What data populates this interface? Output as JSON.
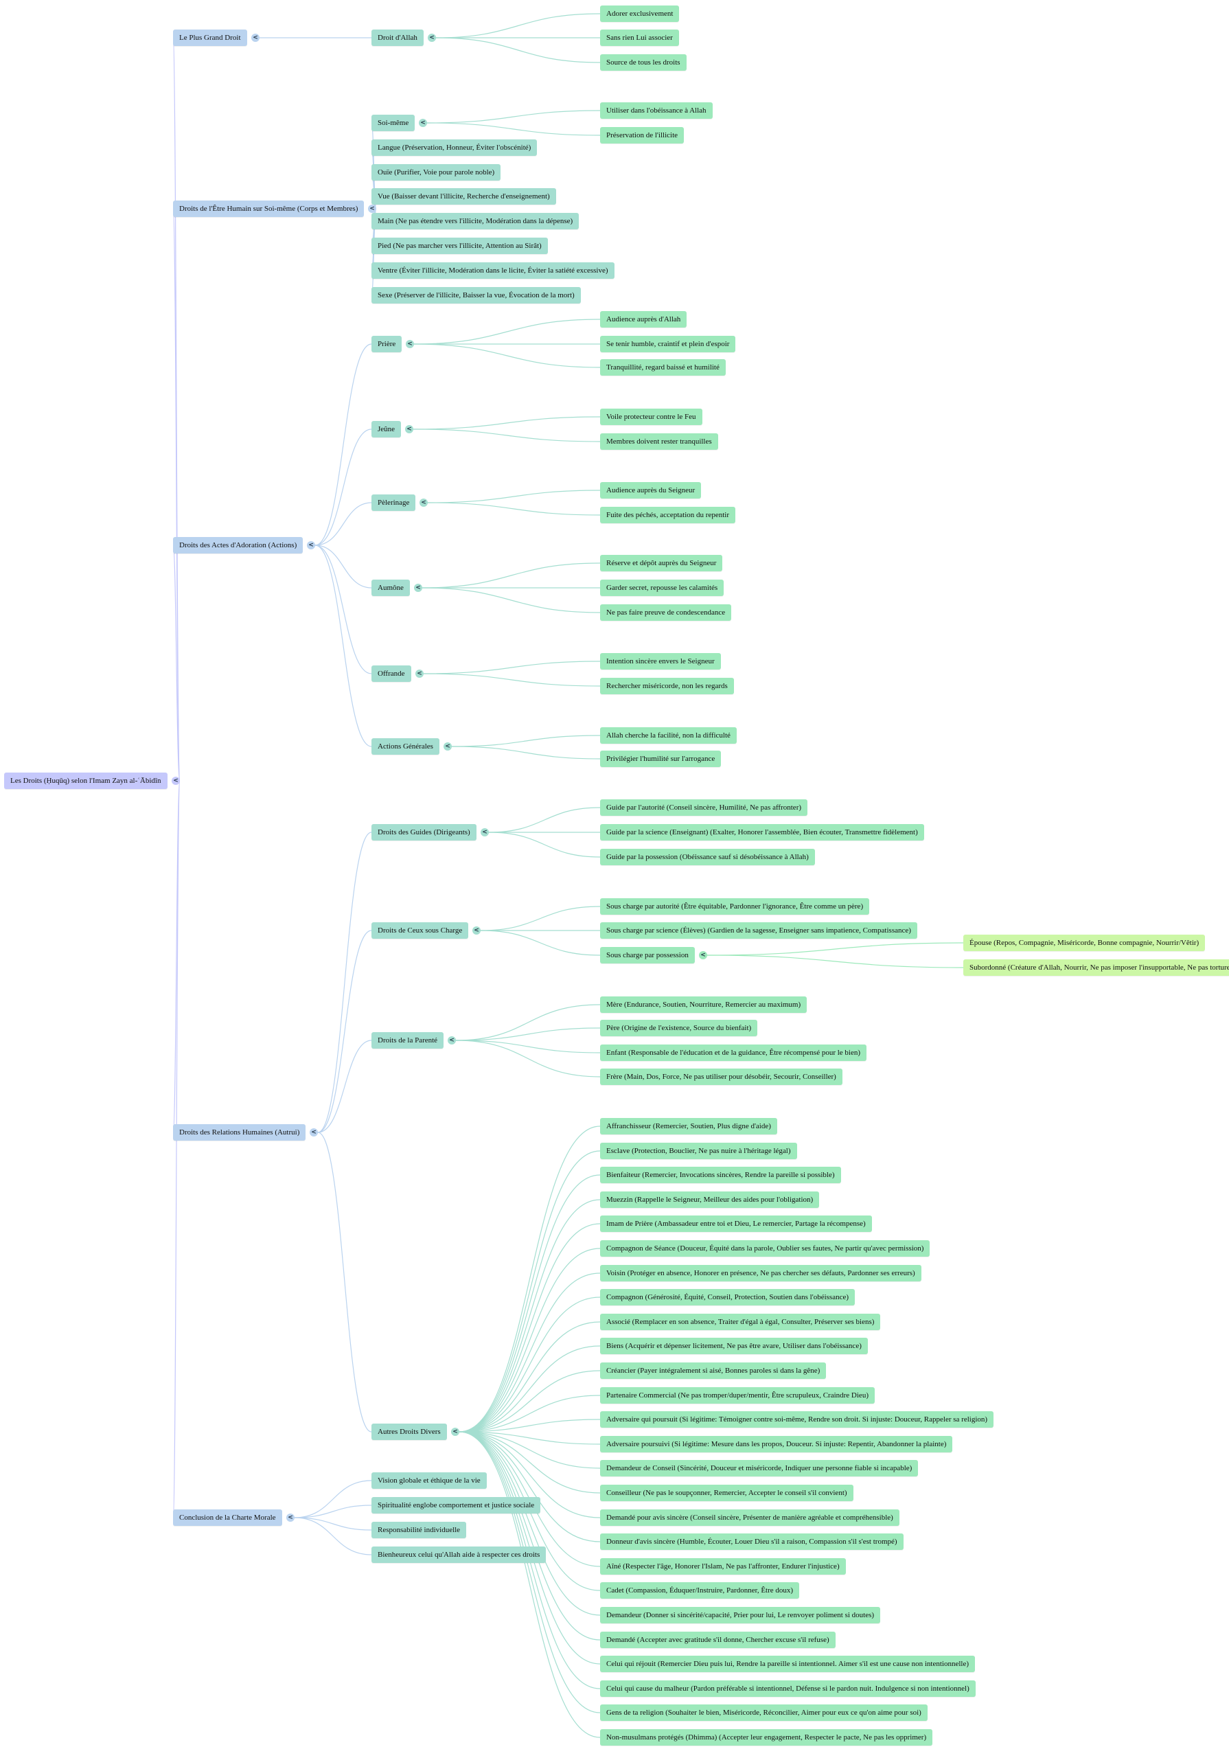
{
  "colors": {
    "level0": "#c5c8fb",
    "level1": "#bad3ef",
    "level2": "#a4ded0",
    "level3": "#9de9bb",
    "level4": "#ccf7a6"
  },
  "toggle_icon": "chevron-left-icon",
  "tree": {
    "label": "Les Droits (Ḥuqūq) selon l'Imam Zayn al-ʿĀbidīn",
    "children": [
      {
        "label": "Le Plus Grand Droit",
        "children": [
          {
            "label": "Droit d'Allah",
            "children": [
              {
                "label": "Adorer exclusivement"
              },
              {
                "label": "Sans rien Lui associer"
              },
              {
                "label": "Source de tous les droits"
              }
            ]
          }
        ]
      },
      {
        "label": "Droits de l'Être Humain sur Soi-même (Corps et Membres)",
        "children": [
          {
            "label": "Soi-même",
            "children": [
              {
                "label": "Utiliser dans l'obéissance à Allah"
              },
              {
                "label": "Préservation de l'illicite"
              }
            ]
          },
          {
            "label": "Langue (Préservation, Honneur, Éviter l'obscénité)"
          },
          {
            "label": "Ouïe (Purifier, Voie pour parole noble)"
          },
          {
            "label": "Vue (Baisser devant l'illicite, Recherche d'enseignement)"
          },
          {
            "label": "Main (Ne pas étendre vers l'illicite, Modération dans la dépense)"
          },
          {
            "label": "Pied (Ne pas marcher vers l'illicite, Attention au Sirât)"
          },
          {
            "label": "Ventre (Éviter l'illicite, Modération dans le licite, Éviter la satiété excessive)"
          },
          {
            "label": "Sexe (Préserver de l'illicite, Baisser la vue, Évocation de la mort)"
          }
        ]
      },
      {
        "label": "Droits des Actes d'Adoration (Actions)",
        "children": [
          {
            "label": "Prière",
            "children": [
              {
                "label": "Audience auprès d'Allah"
              },
              {
                "label": "Se tenir humble, craintif et plein d'espoir"
              },
              {
                "label": "Tranquillité, regard baissé et humilité"
              }
            ]
          },
          {
            "label": "Jeûne",
            "children": [
              {
                "label": "Voile protecteur contre le Feu"
              },
              {
                "label": "Membres doivent rester tranquilles"
              }
            ]
          },
          {
            "label": "Pèlerinage",
            "children": [
              {
                "label": "Audience auprès du Seigneur"
              },
              {
                "label": "Fuite des péchés, acceptation du repentir"
              }
            ]
          },
          {
            "label": "Aumône",
            "children": [
              {
                "label": "Réserve et dépôt auprès du Seigneur"
              },
              {
                "label": "Garder secret, repousse les calamités"
              },
              {
                "label": "Ne pas faire preuve de condescendance"
              }
            ]
          },
          {
            "label": "Offrande",
            "children": [
              {
                "label": "Intention sincère envers le Seigneur"
              },
              {
                "label": "Rechercher miséricorde, non les regards"
              }
            ]
          },
          {
            "label": "Actions Générales",
            "children": [
              {
                "label": "Allah cherche la facilité, non la difficulté"
              },
              {
                "label": "Privilégier l'humilité sur l'arrogance"
              }
            ]
          }
        ]
      },
      {
        "label": "Droits des Relations Humaines (Autrui)",
        "children": [
          {
            "label": "Droits des Guides (Dirigeants)",
            "children": [
              {
                "label": "Guide par l'autorité (Conseil sincère, Humilité, Ne pas affronter)"
              },
              {
                "label": "Guide par la science (Enseignant) (Exalter, Honorer l'assemblée, Bien écouter, Transmettre fidèlement)"
              },
              {
                "label": "Guide par la possession (Obéissance sauf si désobéissance à Allah)"
              }
            ]
          },
          {
            "label": "Droits de Ceux sous Charge",
            "children": [
              {
                "label": "Sous charge par autorité (Être équitable, Pardonner l'ignorance, Être comme un père)"
              },
              {
                "label": "Sous charge par science (Élèves) (Gardien de la sagesse, Enseigner sans impatience, Compatissance)"
              },
              {
                "label": "Sous charge par possession",
                "children": [
                  {
                    "label": "Épouse (Repos, Compagnie, Miséricorde, Bonne compagnie, Nourrir/Vêtir)"
                  },
                  {
                    "label": "Subordonné (Créature d'Allah, Nourrir, Ne pas imposer l'insupportable, Ne pas torturer)"
                  }
                ]
              }
            ]
          },
          {
            "label": "Droits de la Parenté",
            "children": [
              {
                "label": "Mère (Endurance, Soutien, Nourriture, Remercier au maximum)"
              },
              {
                "label": "Père (Origine de l'existence, Source du bienfait)"
              },
              {
                "label": "Enfant (Responsable de l'éducation et de la guidance, Être récompensé pour le bien)"
              },
              {
                "label": "Frère (Main, Dos, Force, Ne pas utiliser pour désobéir, Secourir, Conseiller)"
              }
            ]
          },
          {
            "label": "Autres Droits Divers",
            "children": [
              {
                "label": "Affranchisseur (Remercier, Soutien, Plus digne d'aide)"
              },
              {
                "label": "Esclave (Protection, Bouclier, Ne pas nuire à l'héritage légal)"
              },
              {
                "label": "Bienfaiteur (Remercier, Invocations sincères, Rendre la pareille si possible)"
              },
              {
                "label": "Muezzin (Rappelle le Seigneur, Meilleur des aides pour l'obligation)"
              },
              {
                "label": "Imam de Prière (Ambassadeur entre toi et Dieu, Le remercier, Partage la récompense)"
              },
              {
                "label": "Compagnon de Séance (Douceur, Équité dans la parole, Oublier ses fautes, Ne partir qu'avec permission)"
              },
              {
                "label": "Voisin (Protéger en absence, Honorer en présence, Ne pas chercher ses défauts, Pardonner ses erreurs)"
              },
              {
                "label": "Compagnon (Générosité, Équité, Conseil, Protection, Soutien dans l'obéissance)"
              },
              {
                "label": "Associé (Remplacer en son absence, Traiter d'égal à égal, Consulter, Préserver ses biens)"
              },
              {
                "label": "Biens (Acquérir et dépenser licitement, Ne pas être avare, Utiliser dans l'obéissance)"
              },
              {
                "label": "Créancier (Payer intégralement si aisé, Bonnes paroles si dans la gêne)"
              },
              {
                "label": "Partenaire Commercial (Ne pas tromper/duper/mentir, Être scrupuleux, Craindre Dieu)"
              },
              {
                "label": "Adversaire qui poursuit (Si légitime: Témoigner contre soi-même, Rendre son droit. Si injuste: Douceur, Rappeler sa religion)"
              },
              {
                "label": "Adversaire poursuivi (Si légitime: Mesure dans les propos, Douceur. Si injuste: Repentir, Abandonner la plainte)"
              },
              {
                "label": "Demandeur de Conseil (Sincérité, Douceur et miséricorde, Indiquer une personne fiable si incapable)"
              },
              {
                "label": "Conseilleur (Ne pas le soupçonner, Remercier, Accepter le conseil s'il convient)"
              },
              {
                "label": "Demandé pour avis sincère (Conseil sincère, Présenter de manière agréable et compréhensible)"
              },
              {
                "label": "Donneur d'avis sincère (Humble, Écouter, Louer Dieu s'il a raison, Compassion s'il s'est trompé)"
              },
              {
                "label": "Aîné (Respecter l'âge, Honorer l'Islam, Ne pas l'affronter, Endurer l'injustice)"
              },
              {
                "label": "Cadet (Compassion, Éduquer/Instruire, Pardonner, Être doux)"
              },
              {
                "label": "Demandeur (Donner si sincérité/capacité, Prier pour lui, Le renvoyer poliment si doutes)"
              },
              {
                "label": "Demandé (Accepter avec gratitude s'il donne, Chercher excuse s'il refuse)"
              },
              {
                "label": "Celui qui réjouit (Remercier Dieu puis lui, Rendre la pareille si intentionnel. Aimer s'il est une cause non intentionnelle)"
              },
              {
                "label": "Celui qui cause du malheur (Pardon préférable si intentionnel, Défense si le pardon nuit. Indulgence si non intentionnel)"
              },
              {
                "label": "Gens de ta religion (Souhaiter le bien, Miséricorde, Réconcilier, Aimer pour eux ce qu'on aime pour soi)"
              },
              {
                "label": "Non-musulmans protégés (Dhimma) (Accepter leur engagement, Respecter le pacte, Ne pas les opprimer)"
              }
            ]
          }
        ]
      },
      {
        "label": "Conclusion de la Charte Morale",
        "children": [
          {
            "label": "Vision globale et éthique de la vie"
          },
          {
            "label": "Spiritualité englobe comportement et justice sociale"
          },
          {
            "label": "Responsabilité individuelle"
          },
          {
            "label": "Bienheureux celui qu'Allah aide à respecter ces droits"
          }
        ]
      }
    ]
  }
}
